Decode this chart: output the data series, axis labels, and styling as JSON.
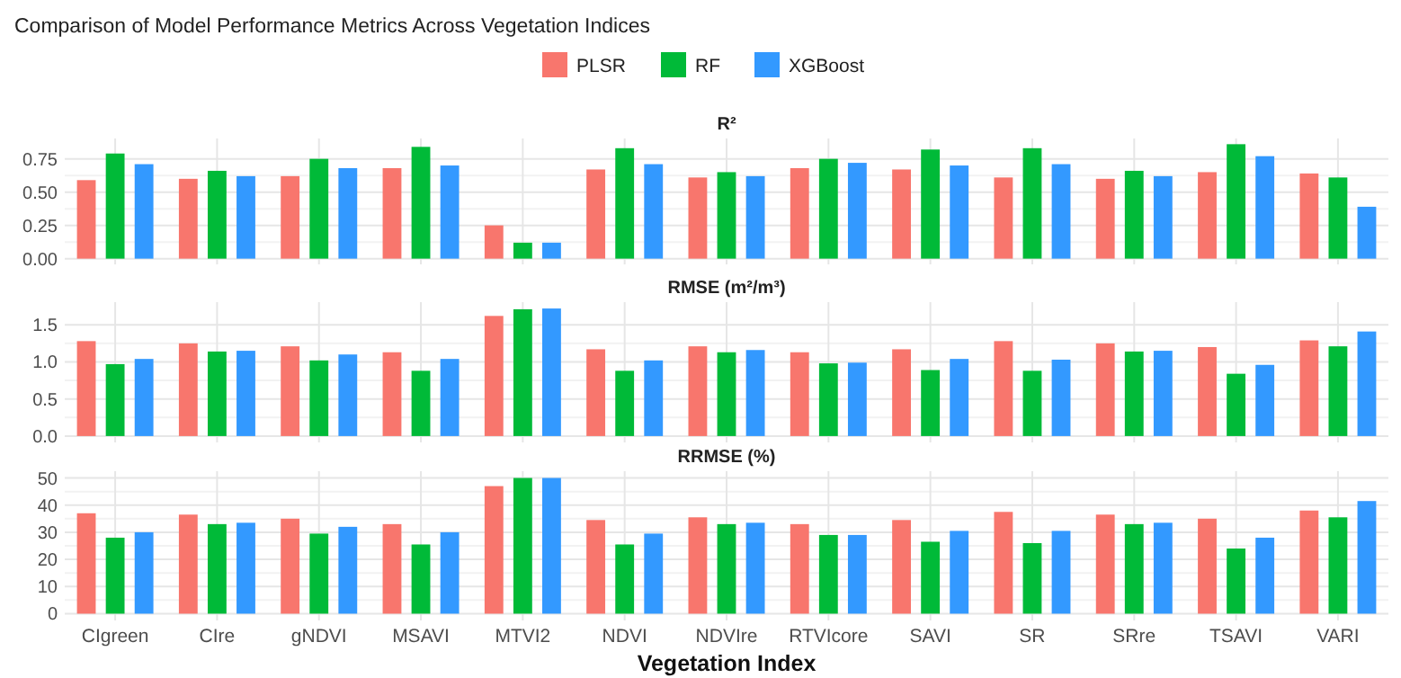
{
  "chart_data": [
    {
      "type": "bar",
      "title": "Comparison of Model Performance Metrics Across Vegetation Indices",
      "subtitle": "R²",
      "legend": "top",
      "grid": true,
      "tick_labels": "y",
      "categories": [
        null,
        null,
        null,
        null,
        null,
        null,
        null,
        null,
        null,
        null,
        null,
        null,
        null
      ],
      "ylim": [
        -0.043,
        0.903
      ],
      "yticks": [
        {
          "value": 0,
          "label": "0.00"
        },
        0.25,
        {
          "value": 0.5,
          "label": "0.50"
        },
        0.75
      ],
      "series": [
        {
          "name": "PLSR",
          "color": "#f8766d",
          "values": [
            0.59,
            0.6,
            0.62,
            0.68,
            0.25,
            0.67,
            0.61,
            0.68,
            0.67,
            0.61,
            0.6,
            0.65,
            0.64
          ]
        },
        {
          "name": "RF",
          "color": "#00ba38",
          "values": [
            0.79,
            0.66,
            0.75,
            0.84,
            0.12,
            0.83,
            0.65,
            0.75,
            0.82,
            0.83,
            0.66,
            0.86,
            0.61
          ]
        },
        {
          "name": "XGBoost",
          "color": "#3399ff",
          "values": [
            0.71,
            0.62,
            0.68,
            0.7,
            0.12,
            0.71,
            0.62,
            0.72,
            0.7,
            0.71,
            0.62,
            0.77,
            0.39
          ]
        }
      ]
    },
    {
      "type": "bar",
      "subtitle": "RMSE (m²/m³)",
      "grid": true,
      "tick_labels": "y",
      "categories": [
        null,
        null,
        null,
        null,
        null,
        null,
        null,
        null,
        null,
        null,
        null,
        null,
        null
      ],
      "ylim": [
        -0.086,
        1.806
      ],
      "yticks": [
        {
          "value": 0,
          "label": "0.0"
        },
        0.5,
        {
          "value": 1,
          "label": "1.0"
        },
        1.5
      ],
      "series": [
        {
          "color": "#f8766d",
          "values": [
            1.28,
            1.25,
            1.21,
            1.13,
            1.62,
            1.17,
            1.21,
            1.13,
            1.17,
            1.28,
            1.25,
            1.2,
            1.29
          ]
        },
        {
          "color": "#00ba38",
          "values": [
            0.97,
            1.14,
            1.02,
            0.88,
            1.71,
            0.88,
            1.13,
            0.98,
            0.89,
            0.88,
            1.14,
            0.84,
            1.21
          ]
        },
        {
          "color": "#3399ff",
          "values": [
            1.04,
            1.15,
            1.1,
            1.04,
            1.72,
            1.02,
            1.16,
            0.99,
            1.04,
            1.03,
            1.15,
            0.96,
            1.41
          ]
        }
      ]
    },
    {
      "type": "bar",
      "subtitle": "RRMSE (%)",
      "xlabel": "Vegetation Index",
      "grid": true,
      "categories": [
        "CIgreen",
        "CIre",
        "gNDVI",
        "MSAVI",
        "MTVI2",
        "NDVI",
        "NDVIre",
        "RTVIcore",
        "SAVI",
        "SR",
        "SRre",
        "TSAVI",
        "VARI"
      ],
      "ylim": [
        -2.5,
        52.5
      ],
      "yticks": [
        0,
        10,
        20,
        30,
        40,
        50
      ],
      "series": [
        {
          "color": "#f8766d",
          "values": [
            37,
            36.5,
            35,
            33,
            47,
            34.5,
            35.5,
            33,
            34.5,
            37.5,
            36.5,
            35,
            38
          ]
        },
        {
          "color": "#00ba38",
          "values": [
            28,
            33,
            29.5,
            25.5,
            50,
            25.5,
            33,
            29,
            26.5,
            26,
            33,
            24,
            35.5
          ]
        },
        {
          "color": "#3399ff",
          "values": [
            30,
            33.5,
            32,
            30,
            50,
            29.5,
            33.5,
            29,
            30.5,
            30.5,
            33.5,
            28,
            41.5
          ]
        }
      ]
    }
  ]
}
